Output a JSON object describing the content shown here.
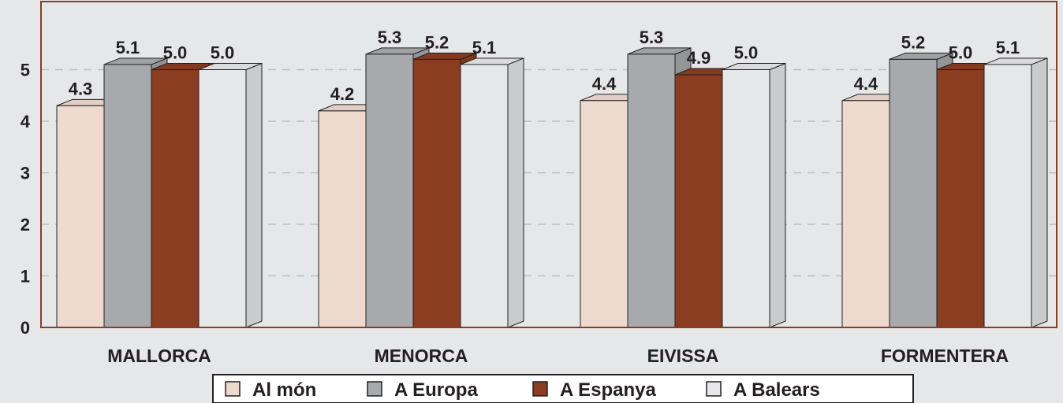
{
  "chart_data": {
    "type": "bar",
    "categories": [
      "MALLORCA",
      "MENORCA",
      "EIVISSA",
      "FORMENTERA"
    ],
    "series": [
      {
        "name": "Al món",
        "values": [
          4.3,
          4.2,
          4.4,
          4.4
        ]
      },
      {
        "name": "A Europa",
        "values": [
          5.1,
          5.3,
          5.3,
          5.2
        ]
      },
      {
        "name": "A Espanya",
        "values": [
          5.0,
          5.2,
          4.9,
          5.0
        ]
      },
      {
        "name": "A Balears",
        "values": [
          5.0,
          5.1,
          5.0,
          5.1
        ]
      }
    ],
    "value_labels": [
      [
        "4.3",
        "5.1",
        "5.0",
        "5.0"
      ],
      [
        "4.2",
        "5.3",
        "5.2",
        "5.1"
      ],
      [
        "4.4",
        "5.3",
        "4.9",
        "5.0"
      ],
      [
        "4.4",
        "5.2",
        "5.0",
        "5.1"
      ]
    ],
    "y_ticks": [
      "0",
      "1",
      "2",
      "3",
      "4",
      "5"
    ],
    "ylim": [
      0,
      6
    ],
    "grid": true,
    "legend_position": "bottom",
    "colors": {
      "series": [
        "#edd9ce",
        "#a7a9ac",
        "#8b3d22",
        "#e6e7e8"
      ],
      "plot_border": "#8b3d22",
      "grid": "#bcbec0",
      "background": "#e6e7e8"
    }
  }
}
